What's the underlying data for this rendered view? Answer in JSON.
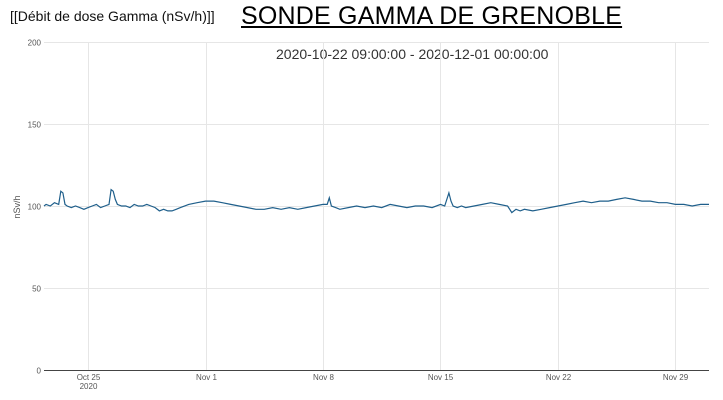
{
  "header": {
    "label": "[[Débit de dose Gamma (nSv/h)]]",
    "title": "SONDE GAMMA DE GRENOBLE"
  },
  "chart_data": {
    "type": "line",
    "title": "2020-10-22 09:00:00 - 2020-12-01 00:00:00",
    "xlabel": "",
    "ylabel": "nSv/h",
    "xlim": [
      "2020-10-22 09:00",
      "2020-12-01 00:00"
    ],
    "ylim": [
      0,
      200
    ],
    "yticks": [
      0,
      50,
      100,
      150,
      200
    ],
    "xticks": [
      {
        "date": "2020-10-25",
        "label": "Oct 25",
        "sublabel": "2020"
      },
      {
        "date": "2020-11-01",
        "label": "Nov 1",
        "sublabel": ""
      },
      {
        "date": "2020-11-08",
        "label": "Nov 8",
        "sublabel": ""
      },
      {
        "date": "2020-11-15",
        "label": "Nov 15",
        "sublabel": ""
      },
      {
        "date": "2020-11-22",
        "label": "Nov 22",
        "sublabel": ""
      },
      {
        "date": "2020-11-29",
        "label": "Nov 29",
        "sublabel": ""
      }
    ],
    "grid": true,
    "color": "#1f5f8b",
    "series": [
      {
        "x": [
          "2020-10-22 09:00",
          "2020-10-22 12:00",
          "2020-10-22 18:00",
          "2020-10-23 00:00",
          "2020-10-23 06:00",
          "2020-10-23 09:00",
          "2020-10-23 12:00",
          "2020-10-23 15:00",
          "2020-10-23 18:00",
          "2020-10-24 00:00",
          "2020-10-24 06:00",
          "2020-10-24 12:00",
          "2020-10-24 18:00",
          "2020-10-25 00:00",
          "2020-10-25 06:00",
          "2020-10-25 12:00",
          "2020-10-25 18:00",
          "2020-10-26 00:00",
          "2020-10-26 06:00",
          "2020-10-26 09:00",
          "2020-10-26 12:00",
          "2020-10-26 15:00",
          "2020-10-26 18:00",
          "2020-10-27 00:00",
          "2020-10-27 06:00",
          "2020-10-27 12:00",
          "2020-10-27 18:00",
          "2020-10-28 00:00",
          "2020-10-28 06:00",
          "2020-10-28 12:00",
          "2020-10-28 18:00",
          "2020-10-29 00:00",
          "2020-10-29 06:00",
          "2020-10-29 12:00",
          "2020-10-29 18:00",
          "2020-10-30 00:00",
          "2020-10-30 06:00",
          "2020-10-30 12:00",
          "2020-10-31 00:00",
          "2020-10-31 12:00",
          "2020-11-01 00:00",
          "2020-11-01 12:00",
          "2020-11-02 00:00",
          "2020-11-02 12:00",
          "2020-11-03 00:00",
          "2020-11-03 12:00",
          "2020-11-04 00:00",
          "2020-11-04 12:00",
          "2020-11-05 00:00",
          "2020-11-05 12:00",
          "2020-11-06 00:00",
          "2020-11-06 12:00",
          "2020-11-07 00:00",
          "2020-11-07 12:00",
          "2020-11-08 00:00",
          "2020-11-08 06:00",
          "2020-11-08 09:00",
          "2020-11-08 12:00",
          "2020-11-08 18:00",
          "2020-11-09 00:00",
          "2020-11-09 12:00",
          "2020-11-10 00:00",
          "2020-11-10 12:00",
          "2020-11-11 00:00",
          "2020-11-11 12:00",
          "2020-11-12 00:00",
          "2020-11-12 12:00",
          "2020-11-13 00:00",
          "2020-11-13 12:00",
          "2020-11-14 00:00",
          "2020-11-14 12:00",
          "2020-11-15 00:00",
          "2020-11-15 06:00",
          "2020-11-15 12:00",
          "2020-11-15 15:00",
          "2020-11-15 18:00",
          "2020-11-16 00:00",
          "2020-11-16 06:00",
          "2020-11-16 12:00",
          "2020-11-17 00:00",
          "2020-11-17 12:00",
          "2020-11-18 00:00",
          "2020-11-18 12:00",
          "2020-11-19 00:00",
          "2020-11-19 06:00",
          "2020-11-19 12:00",
          "2020-11-19 18:00",
          "2020-11-20 00:00",
          "2020-11-20 12:00",
          "2020-11-21 00:00",
          "2020-11-21 12:00",
          "2020-11-22 00:00",
          "2020-11-22 12:00",
          "2020-11-23 00:00",
          "2020-11-23 12:00",
          "2020-11-24 00:00",
          "2020-11-24 12:00",
          "2020-11-25 00:00",
          "2020-11-25 12:00",
          "2020-11-26 00:00",
          "2020-11-26 12:00",
          "2020-11-27 00:00",
          "2020-11-27 12:00",
          "2020-11-28 00:00",
          "2020-11-28 12:00",
          "2020-11-29 00:00",
          "2020-11-29 12:00",
          "2020-11-30 00:00",
          "2020-11-30 12:00",
          "2020-12-01 00:00"
        ],
        "y": [
          100,
          101,
          100,
          102,
          101,
          109,
          108,
          101,
          100,
          99,
          100,
          99,
          98,
          99,
          100,
          101,
          99,
          100,
          101,
          110,
          109,
          104,
          101,
          100,
          100,
          99,
          101,
          100,
          100,
          101,
          100,
          99,
          97,
          98,
          97,
          97,
          98,
          99,
          101,
          102,
          103,
          103,
          102,
          101,
          100,
          99,
          98,
          98,
          99,
          98,
          99,
          98,
          99,
          100,
          101,
          101,
          105,
          100,
          99,
          98,
          99,
          100,
          99,
          100,
          99,
          101,
          100,
          99,
          100,
          100,
          99,
          101,
          100,
          108,
          103,
          100,
          99,
          100,
          99,
          100,
          101,
          102,
          101,
          100,
          96,
          98,
          97,
          98,
          97,
          98,
          99,
          100,
          101,
          102,
          103,
          102,
          103,
          103,
          104,
          105,
          104,
          103,
          103,
          102,
          102,
          101,
          101,
          100,
          101,
          101
        ]
      }
    ]
  }
}
